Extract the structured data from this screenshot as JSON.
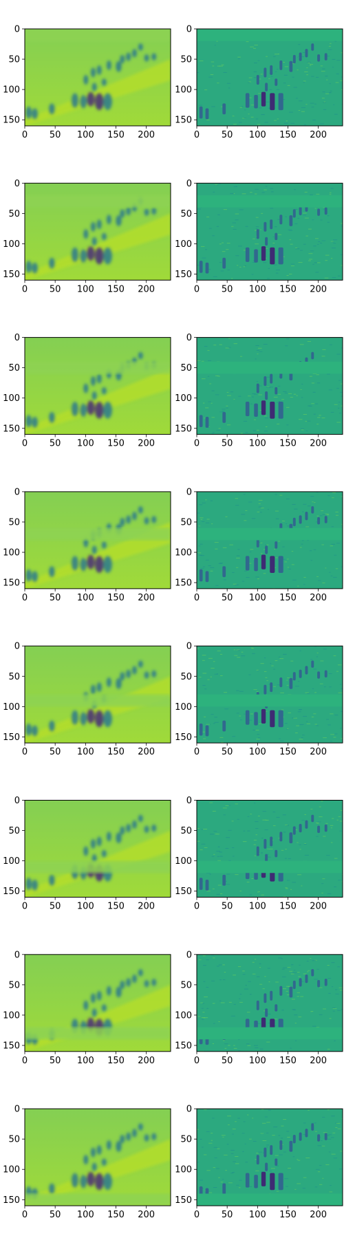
{
  "chart_data": {
    "type": "heatmap",
    "grid": false,
    "colormap": "viridis",
    "layout": {
      "rows": 8,
      "cols": 2
    },
    "image_size": {
      "width": 240,
      "height": 160
    },
    "xlim": [
      0,
      240
    ],
    "ylim": [
      160,
      0
    ],
    "x_ticks": [
      0,
      50,
      100,
      150,
      200
    ],
    "y_ticks": [
      0,
      50,
      100,
      150
    ],
    "x_tick_labels": [
      "0",
      "50",
      "100",
      "150",
      "200"
    ],
    "y_tick_labels": [
      "0",
      "50",
      "100",
      "150"
    ],
    "panels_left_style": "blurred-reconstruction",
    "panels_right_style": "high-frequency-residual",
    "masked_band_rows": [
      [
        0,
        20
      ],
      [
        20,
        40
      ],
      [
        40,
        60
      ],
      [
        60,
        80
      ],
      [
        80,
        100
      ],
      [
        100,
        120
      ],
      [
        120,
        140
      ],
      [
        140,
        160
      ]
    ],
    "colors": {
      "background_left": "#8fd14f",
      "background_right": "#2db27d",
      "dark": "#440154",
      "mid": "#31688e",
      "bright": "#d0e11c"
    }
  }
}
